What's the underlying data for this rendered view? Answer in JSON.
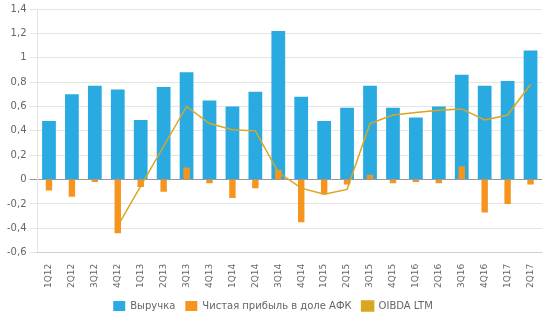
{
  "chart_data": {
    "type": "bar",
    "categories": [
      "1Q12",
      "2Q12",
      "3Q12",
      "4Q12",
      "1Q13",
      "2Q13",
      "3Q13",
      "4Q13",
      "1Q14",
      "2Q14",
      "3Q14",
      "4Q14",
      "1Q15",
      "2Q15",
      "3Q15",
      "4Q15",
      "1Q16",
      "2Q16",
      "3Q16",
      "4Q16",
      "1Q17",
      "2Q17"
    ],
    "series": [
      {
        "name": "Выручка",
        "type": "bar",
        "color": "#29ABE2",
        "values": [
          0.48,
          0.7,
          0.77,
          0.74,
          0.49,
          0.76,
          0.88,
          0.65,
          0.6,
          0.72,
          1.22,
          0.68,
          0.48,
          0.59,
          0.77,
          0.59,
          0.51,
          0.6,
          0.86,
          0.77,
          0.81,
          1.06
        ]
      },
      {
        "name": "Чистая прибыль в доле АФК",
        "type": "bar",
        "color": "#F7941D",
        "values": [
          -0.09,
          -0.14,
          -0.02,
          -0.44,
          -0.06,
          -0.1,
          0.1,
          -0.03,
          -0.15,
          -0.07,
          0.08,
          -0.35,
          -0.12,
          -0.04,
          0.04,
          -0.03,
          -0.02,
          -0.03,
          0.11,
          -0.27,
          -0.2,
          -0.04
        ]
      },
      {
        "name": "OIBDA LTM",
        "type": "line",
        "color": "#DAA520",
        "values": [
          null,
          null,
          null,
          -0.38,
          null,
          null,
          0.6,
          0.46,
          0.41,
          0.4,
          0.06,
          -0.07,
          -0.12,
          -0.08,
          0.46,
          0.53,
          0.55,
          0.57,
          0.58,
          0.49,
          0.53,
          0.78
        ]
      }
    ],
    "ylim": [
      -0.6,
      1.4
    ],
    "yticks": [
      {
        "value": -0.6,
        "label": "-0,6"
      },
      {
        "value": -0.4,
        "label": "-0,4"
      },
      {
        "value": -0.2,
        "label": "-0,2"
      },
      0,
      {
        "value": 0.2,
        "label": "0,2"
      },
      {
        "value": 0.4,
        "label": "0,4"
      },
      {
        "value": 0.6,
        "label": "0,6"
      },
      {
        "value": 0.8,
        "label": "0,8"
      },
      1,
      {
        "value": 1.2,
        "label": "1,2"
      },
      {
        "value": 1.4,
        "label": "1,4"
      }
    ],
    "grid": true,
    "legend": "bottom"
  }
}
